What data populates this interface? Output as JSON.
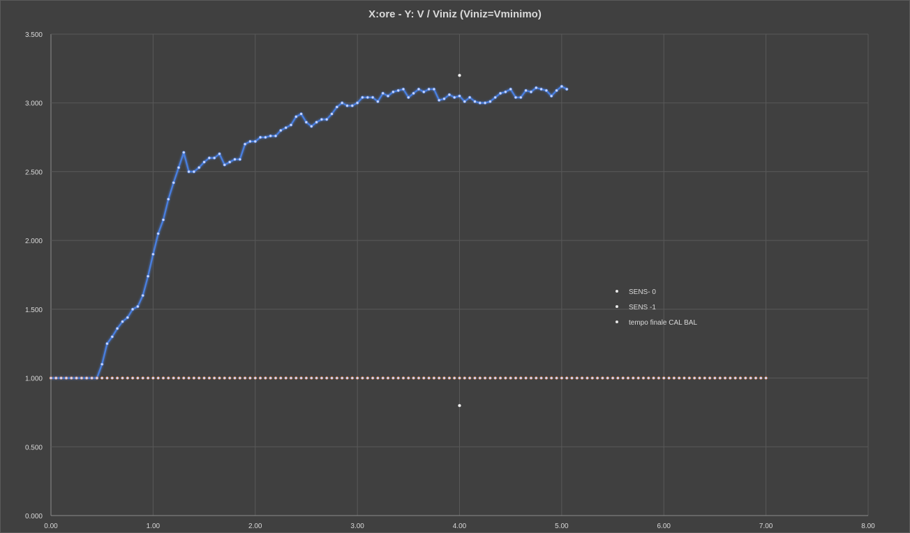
{
  "chart_data": {
    "type": "line",
    "title": "X:ore - Y: V / Viniz (Viniz=Vminimo)",
    "xlabel": "",
    "ylabel": "",
    "xlim": [
      0,
      8
    ],
    "ylim": [
      0,
      3.5
    ],
    "x_ticks": [
      "0.00",
      "1.00",
      "2.00",
      "3.00",
      "4.00",
      "5.00",
      "6.00",
      "7.00",
      "8.00"
    ],
    "y_ticks": [
      "0.000",
      "0.500",
      "1.000",
      "1.500",
      "2.000",
      "2.500",
      "3.000",
      "3.500"
    ],
    "grid": true,
    "legend_position": "right-middle",
    "colors": {
      "background": "#404040",
      "grid": "#595959",
      "text": "#d9d9d9"
    },
    "series": [
      {
        "name": "SENS- 0",
        "color": "#4a7fe0",
        "x_start": 0,
        "x_step": 0.05,
        "values": [
          1.0,
          1.0,
          1.0,
          1.0,
          1.0,
          1.0,
          1.0,
          1.0,
          1.0,
          1.0,
          1.1,
          1.25,
          1.3,
          1.36,
          1.41,
          1.44,
          1.5,
          1.52,
          1.6,
          1.74,
          1.9,
          2.05,
          2.15,
          2.3,
          2.42,
          2.53,
          2.64,
          2.5,
          2.5,
          2.53,
          2.57,
          2.6,
          2.6,
          2.63,
          2.55,
          2.57,
          2.59,
          2.59,
          2.7,
          2.72,
          2.72,
          2.75,
          2.75,
          2.76,
          2.76,
          2.8,
          2.82,
          2.84,
          2.9,
          2.92,
          2.86,
          2.83,
          2.86,
          2.88,
          2.88,
          2.92,
          2.97,
          3.0,
          2.98,
          2.98,
          3.0,
          3.04,
          3.04,
          3.04,
          3.01,
          3.07,
          3.05,
          3.08,
          3.09,
          3.1,
          3.04,
          3.07,
          3.1,
          3.08,
          3.1,
          3.1,
          3.02,
          3.03,
          3.06,
          3.04,
          3.05,
          3.01,
          3.04,
          3.01,
          3.0,
          3.0,
          3.01,
          3.04,
          3.07,
          3.08,
          3.1,
          3.04,
          3.04,
          3.09,
          3.08,
          3.11,
          3.1,
          3.09,
          3.05,
          3.09,
          3.12,
          3.1
        ]
      },
      {
        "name": "SENS -1",
        "color": "#ed7d31",
        "x_start": 0,
        "x_step": 0.05,
        "values": [
          1.0,
          1.0,
          1.0,
          1.0,
          1.0,
          1.0,
          1.0,
          1.0,
          1.0,
          1.0,
          1.0,
          1.0,
          1.0,
          1.0,
          1.0,
          1.0,
          1.0,
          1.0,
          1.0,
          1.0,
          1.0,
          1.0,
          1.0,
          1.0,
          1.0,
          1.0,
          1.0,
          1.0,
          1.0,
          1.0,
          1.0,
          1.0,
          1.0,
          1.0,
          1.0,
          1.0,
          1.0,
          1.0,
          1.0,
          1.0,
          1.0,
          1.0,
          1.0,
          1.0,
          1.0,
          1.0,
          1.0,
          1.0,
          1.0,
          1.0,
          1.0,
          1.0,
          1.0,
          1.0,
          1.0,
          1.0,
          1.0,
          1.0,
          1.0,
          1.0,
          1.0,
          1.0,
          1.0,
          1.0,
          1.0,
          1.0,
          1.0,
          1.0,
          1.0,
          1.0,
          1.0,
          1.0,
          1.0,
          1.0,
          1.0,
          1.0,
          1.0,
          1.0,
          1.0,
          1.0,
          1.0,
          1.0,
          1.0,
          1.0,
          1.0,
          1.0,
          1.0,
          1.0,
          1.0,
          1.0,
          1.0,
          1.0,
          1.0,
          1.0,
          1.0,
          1.0,
          1.0,
          1.0,
          1.0,
          1.0,
          1.0,
          1.0,
          1.0,
          1.0,
          1.0,
          1.0,
          1.0,
          1.0,
          1.0,
          1.0,
          1.0,
          1.0,
          1.0,
          1.0,
          1.0,
          1.0,
          1.0,
          1.0,
          1.0,
          1.0,
          1.0,
          1.0,
          1.0,
          1.0,
          1.0,
          1.0,
          1.0,
          1.0,
          1.0,
          1.0,
          1.0,
          1.0,
          1.0,
          1.0,
          1.0,
          1.0,
          1.0,
          1.0,
          1.0,
          1.0,
          1.0
        ]
      },
      {
        "name": "tempo finale CAL BAL",
        "color": "#d9d9d9",
        "x": [
          4.0,
          4.0
        ],
        "values": [
          3.2,
          0.8
        ]
      }
    ]
  }
}
